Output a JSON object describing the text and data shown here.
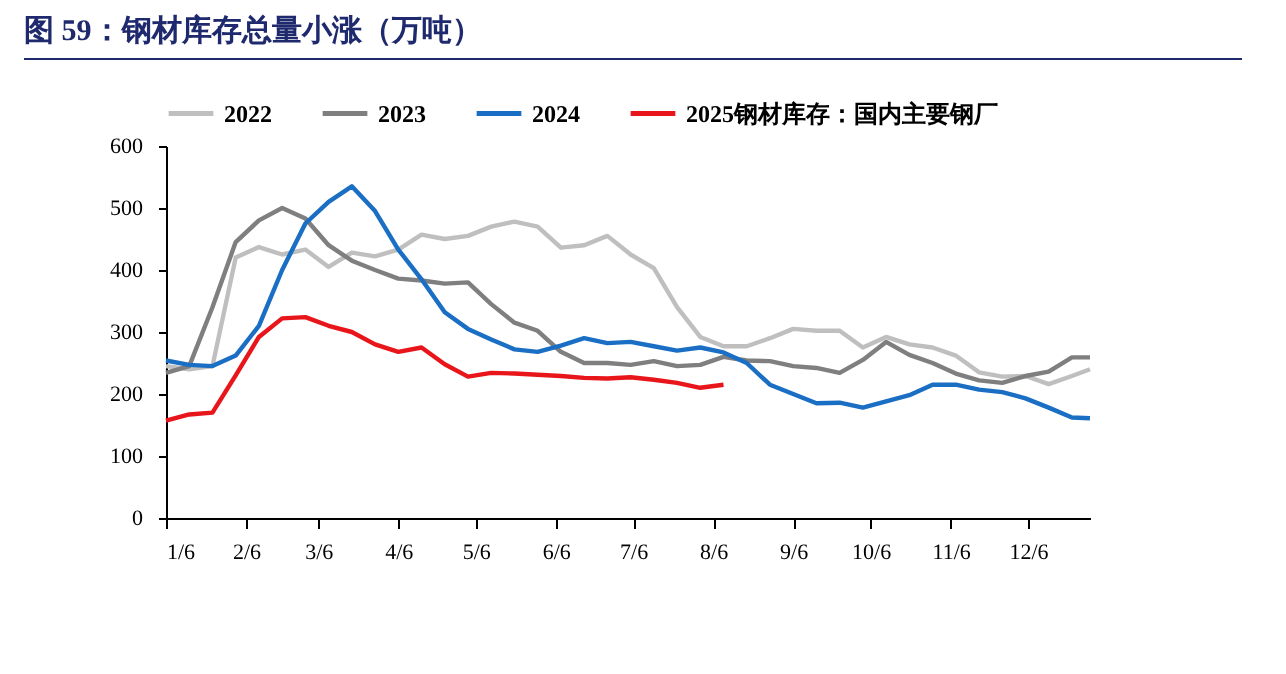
{
  "chart_data": {
    "type": "line",
    "title": "图 59：钢材库存总量小涨（万吨）",
    "x": [
      "--01-06",
      "--01-15",
      "--01-24",
      "--02-02",
      "--02-11",
      "--02-20",
      "--03-01",
      "--03-10",
      "--03-19",
      "--03-28",
      "--04-06",
      "--04-15",
      "--04-24",
      "--05-03",
      "--05-12",
      "--05-21",
      "--05-30",
      "--06-08",
      "--06-17",
      "--06-26",
      "--07-05",
      "--07-14",
      "--07-23",
      "--08-01",
      "--08-10",
      "--08-19",
      "--08-28",
      "--09-06",
      "--09-15",
      "--09-24",
      "--10-03",
      "--10-12",
      "--10-21",
      "--10-30",
      "--11-08",
      "--11-17",
      "--11-26",
      "--12-05",
      "--12-14",
      "--12-23",
      "--12-30"
    ],
    "series": [
      {
        "name": "2022",
        "color": "#bfbfbf",
        "values": [
          245,
          240,
          245,
          420,
          437,
          425,
          433,
          405,
          428,
          422,
          433,
          457,
          450,
          455,
          470,
          478,
          470,
          436,
          440,
          455,
          425,
          403,
          340,
          292,
          277,
          277,
          290,
          305,
          302,
          302,
          275,
          292,
          280,
          275,
          262,
          235,
          228,
          229,
          216,
          229,
          240
        ]
      },
      {
        "name": "2023",
        "color": "#7f7f7f",
        "values": [
          234,
          245,
          340,
          445,
          480,
          500,
          483,
          440,
          415,
          400,
          386,
          383,
          378,
          380,
          345,
          315,
          302,
          268,
          250,
          250,
          247,
          253,
          245,
          247,
          260,
          254,
          253,
          245,
          242,
          234,
          255,
          284,
          263,
          250,
          233,
          222,
          218,
          229,
          236,
          259,
          259
        ]
      },
      {
        "name": "2024",
        "color": "#1a6fc4",
        "values": [
          254,
          247,
          245,
          262,
          310,
          400,
          475,
          510,
          535,
          495,
          433,
          385,
          332,
          305,
          288,
          272,
          268,
          278,
          290,
          282,
          284,
          277,
          270,
          275,
          267,
          250,
          215,
          200,
          185,
          186,
          178,
          188,
          198,
          215,
          215,
          207,
          203,
          193,
          178,
          162,
          161
        ]
      },
      {
        "name": "2025钢材库存：国内主要钢厂",
        "color": "#e8151b",
        "x": [
          "--01-06",
          "--01-15",
          "--01-24",
          "--02-02",
          "--02-11",
          "--02-20",
          "--03-01",
          "--03-10",
          "--03-19",
          "--03-28",
          "--04-06",
          "--04-15",
          "--04-24",
          "--05-03",
          "--05-12",
          "--05-21",
          "--05-30",
          "--06-08",
          "--06-17",
          "--06-26",
          "--07-05",
          "--07-14",
          "--07-23",
          "--08-01",
          "--08-10"
        ],
        "values": [
          157,
          167,
          170,
          230,
          292,
          322,
          324,
          310,
          300,
          280,
          268,
          275,
          248,
          228,
          234,
          233,
          231,
          229,
          226,
          225,
          227,
          223,
          218,
          210,
          215
        ]
      }
    ],
    "xlim": [
      "--01-06",
      "--12-30"
    ],
    "xticks": [
      {
        "value": "--01-06",
        "label": "1/6"
      },
      {
        "value": "--02-06",
        "label": "2/6"
      },
      {
        "value": "--03-06",
        "label": "3/6"
      },
      {
        "value": "--04-06",
        "label": "4/6"
      },
      {
        "value": "--05-06",
        "label": "5/6"
      },
      {
        "value": "--06-06",
        "label": "6/6"
      },
      {
        "value": "--07-06",
        "label": "7/6"
      },
      {
        "value": "--08-06",
        "label": "8/6"
      },
      {
        "value": "--09-06",
        "label": "9/6"
      },
      {
        "value": "--10-06",
        "label": "10/6"
      },
      {
        "value": "--11-06",
        "label": "11/6"
      },
      {
        "value": "--12-06",
        "label": "12/6"
      }
    ],
    "ylim": [
      0,
      600
    ],
    "yticks": [
      0,
      100,
      200,
      300,
      400,
      500,
      600
    ],
    "grid": false,
    "legend": "top",
    "line_style": "solid"
  }
}
